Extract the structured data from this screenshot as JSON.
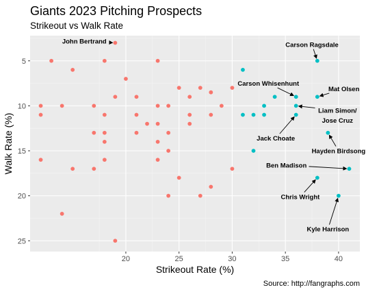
{
  "chart_data": {
    "type": "scatter",
    "title": "Giants 2023 Pitching Prospects",
    "subtitle": "Strikeout vs Walk Rate",
    "xlabel": "Strikeout Rate (%)",
    "ylabel": "Walk Rate (%)",
    "caption": "Source: http://fangraphs.com",
    "xlim": [
      11,
      42
    ],
    "ylim": [
      2.2,
      26.2
    ],
    "y_reversed": true,
    "x_ticks": [
      20,
      25,
      30,
      35,
      40
    ],
    "y_ticks": [
      5,
      10,
      15,
      20,
      25
    ],
    "grid": true,
    "colors": {
      "panel": "#ebebeb",
      "grid_major": "#ffffff",
      "grid_minor": "#f4f4f4",
      "group_a": "#f8766d",
      "group_b": "#00bfc4"
    },
    "series": [
      {
        "color": "#f8766d",
        "points": [
          [
            19,
            3
          ],
          [
            13,
            5
          ],
          [
            18,
            5
          ],
          [
            23,
            5
          ],
          [
            15,
            6
          ],
          [
            20,
            7
          ],
          [
            25,
            8
          ],
          [
            27,
            8
          ],
          [
            30,
            8
          ],
          [
            28,
            8.5
          ],
          [
            19,
            9
          ],
          [
            21,
            9
          ],
          [
            26,
            9
          ],
          [
            12,
            10
          ],
          [
            14,
            10
          ],
          [
            17,
            10
          ],
          [
            23,
            10
          ],
          [
            24,
            10
          ],
          [
            29,
            10
          ],
          [
            12,
            11
          ],
          [
            18,
            11
          ],
          [
            21,
            11
          ],
          [
            26,
            11
          ],
          [
            28,
            11
          ],
          [
            22,
            12
          ],
          [
            23,
            12
          ],
          [
            26,
            12
          ],
          [
            17,
            13
          ],
          [
            18,
            13
          ],
          [
            21,
            13
          ],
          [
            24,
            13
          ],
          [
            18,
            14
          ],
          [
            23,
            14
          ],
          [
            24,
            15
          ],
          [
            12,
            16
          ],
          [
            18,
            16
          ],
          [
            23,
            16
          ],
          [
            15,
            17
          ],
          [
            17,
            17
          ],
          [
            30,
            17
          ],
          [
            25,
            18
          ],
          [
            28,
            19
          ],
          [
            24,
            20
          ],
          [
            27,
            20
          ],
          [
            14,
            22
          ],
          [
            19,
            25
          ]
        ]
      },
      {
        "color": "#00bfc4",
        "points": [
          [
            38,
            5
          ],
          [
            31,
            6
          ],
          [
            34,
            9
          ],
          [
            36,
            9
          ],
          [
            38,
            9
          ],
          [
            33,
            10
          ],
          [
            36,
            10
          ],
          [
            31,
            11
          ],
          [
            32,
            11
          ],
          [
            33,
            11
          ],
          [
            36,
            11
          ],
          [
            39,
            13
          ],
          [
            32,
            15
          ],
          [
            41,
            17
          ],
          [
            38,
            18
          ],
          [
            40,
            20
          ]
        ]
      }
    ],
    "annotations": [
      {
        "label": "John Bertrand",
        "text_x": 16.1,
        "text_y": 2.8,
        "point": [
          19,
          3
        ]
      },
      {
        "label": "Carson Ragsdale",
        "text_x": 37.5,
        "text_y": 3.2,
        "point": [
          38,
          5
        ]
      },
      {
        "label": "Carson Whisenhunt",
        "text_x": 33.4,
        "text_y": 7.5,
        "point": [
          36,
          9
        ]
      },
      {
        "label": "Mat Olsen",
        "text_x": 40.5,
        "text_y": 8.1,
        "point": [
          38,
          9
        ]
      },
      {
        "label": "Liam Simon/",
        "text_x": 39.9,
        "text_y": 10.5,
        "point": [
          36,
          10
        ]
      },
      {
        "label": "Jose Cruz",
        "text_x": 39.9,
        "text_y": 11.6,
        "point": null
      },
      {
        "label": "Jack Choate",
        "text_x": 34.1,
        "text_y": 13.6,
        "point": [
          36,
          11
        ]
      },
      {
        "label": "Hayden Birdsong",
        "text_x": 40.0,
        "text_y": 15.0,
        "point": [
          39,
          13
        ]
      },
      {
        "label": "Ben Madison",
        "text_x": 35.1,
        "text_y": 16.6,
        "point": [
          41,
          17
        ]
      },
      {
        "label": "Chris Wright",
        "text_x": 36.4,
        "text_y": 20.1,
        "point": [
          38,
          18
        ]
      },
      {
        "label": "Kyle Harrison",
        "text_x": 39.0,
        "text_y": 23.7,
        "point": [
          40,
          20
        ]
      }
    ]
  }
}
